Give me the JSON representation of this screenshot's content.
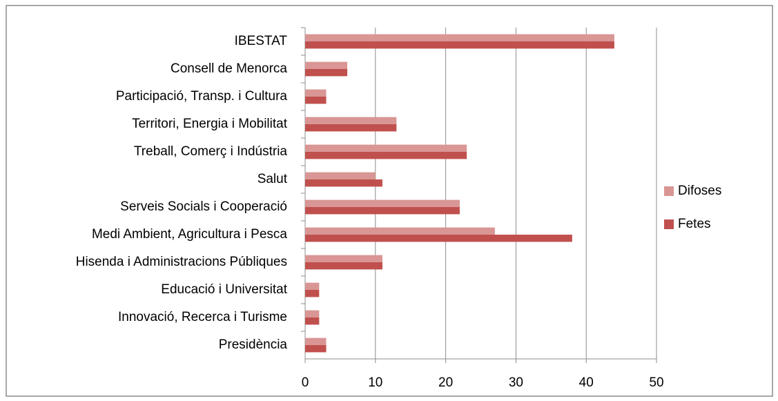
{
  "chart_data": {
    "type": "hbar",
    "categories": [
      "IBESTAT",
      "Consell de Menorca",
      "Participació, Transp. i Cultura",
      "Territori, Energia i Mobilitat",
      "Treball, Comerç i Indústria",
      "Salut",
      "Serveis Socials i Cooperació",
      "Medi Ambient, Agricultura i Pesca",
      "Hisenda i Administracions Públiques",
      "Educació i Universitat",
      "Innovació, Recerca i Turisme",
      "Presidència"
    ],
    "series": [
      {
        "name": "Difoses",
        "color": "#d99694",
        "values": [
          44,
          6,
          3,
          13,
          23,
          10,
          22,
          27,
          11,
          2,
          2,
          3
        ]
      },
      {
        "name": "Fetes",
        "color": "#c0504d",
        "values": [
          44,
          6,
          3,
          13,
          23,
          11,
          22,
          38,
          11,
          2,
          2,
          3
        ]
      }
    ],
    "xlim": [
      0,
      50
    ],
    "xticks": [
      0,
      10,
      20,
      30,
      40,
      50
    ],
    "grid": true,
    "legend": "right"
  }
}
